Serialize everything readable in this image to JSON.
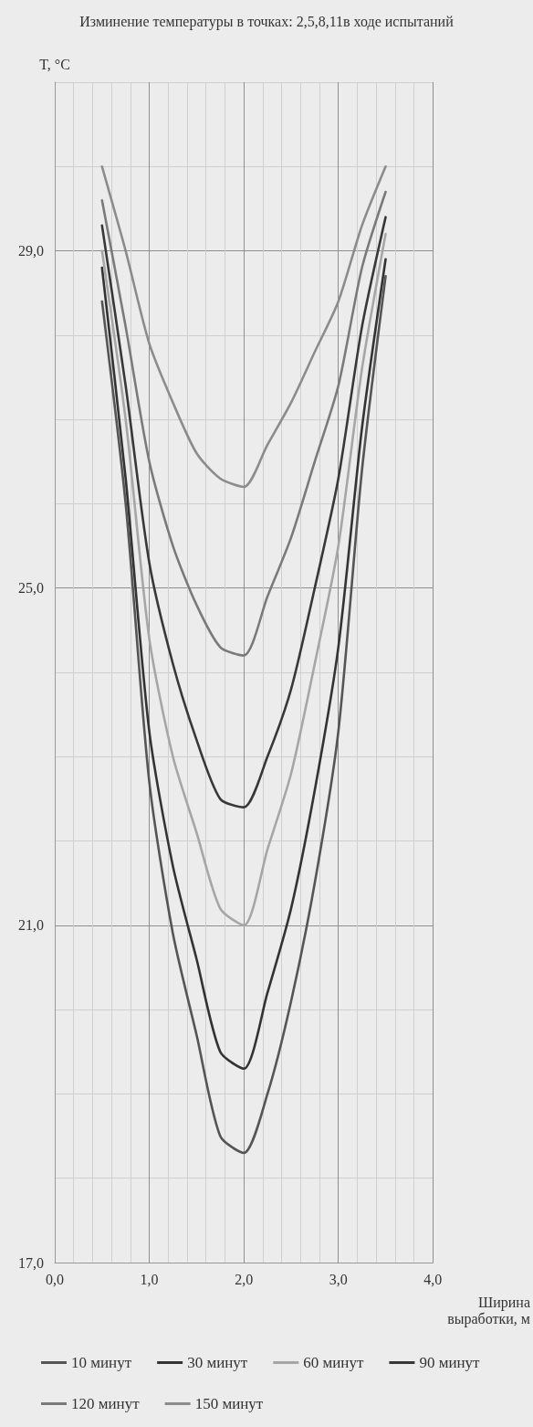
{
  "chart_data": {
    "type": "line",
    "title": "Изминение температуры в точках: 2,5,8,11в ходе испытаний",
    "xlabel": "Ширина\nвыработки, м",
    "ylabel": "T, °C",
    "x": [
      0.5,
      0.75,
      1,
      1.25,
      1.5,
      1.75,
      2,
      2.25,
      2.5,
      2.75,
      3,
      3.25,
      3.5
    ],
    "series": [
      {
        "name": "10 минут",
        "color": "#555555",
        "values": [
          28.4,
          26.0,
          22.7,
          20.9,
          19.7,
          18.5,
          18.3,
          19.0,
          20.1,
          21.5,
          23.3,
          26.4,
          28.7
        ]
      },
      {
        "name": "30 минут",
        "color": "#333333",
        "values": [
          28.8,
          26.3,
          23.3,
          21.7,
          20.6,
          19.5,
          19.3,
          20.2,
          21.2,
          22.6,
          24.3,
          26.9,
          28.9
        ]
      },
      {
        "name": "60 минут",
        "color": "#a6a6a6",
        "values": [
          29.0,
          27.0,
          24.4,
          23.0,
          22.1,
          21.2,
          21.0,
          21.9,
          22.8,
          24.1,
          25.5,
          27.6,
          29.2
        ]
      },
      {
        "name": "90 минут",
        "color": "#383838",
        "values": [
          29.3,
          27.4,
          25.3,
          24.1,
          23.2,
          22.5,
          22.4,
          23.0,
          23.8,
          25.0,
          26.3,
          28.1,
          29.4
        ]
      },
      {
        "name": "120 минут",
        "color": "#7a7a7a",
        "values": [
          29.6,
          28.1,
          26.5,
          25.5,
          24.8,
          24.3,
          24.2,
          24.9,
          25.6,
          26.5,
          27.4,
          28.8,
          29.7
        ]
      },
      {
        "name": "150 минут",
        "color": "#8c8c8c",
        "values": [
          30.0,
          29.0,
          27.9,
          27.2,
          26.6,
          26.3,
          26.2,
          26.7,
          27.2,
          27.8,
          28.4,
          29.3,
          30.0
        ]
      }
    ],
    "xlim": [
      0,
      4
    ],
    "xticks": [
      {
        "value": 0,
        "label": "0,0"
      },
      {
        "value": 1,
        "label": "1,0"
      },
      {
        "value": 2,
        "label": "2,0"
      },
      {
        "value": 3,
        "label": "3,0"
      },
      {
        "value": 4,
        "label": "4,0"
      }
    ],
    "ylim": [
      17,
      31
    ],
    "yticks": [
      {
        "value": 17,
        "label": "17,0"
      },
      {
        "value": 21,
        "label": "21,0"
      },
      {
        "value": 25,
        "label": "25,0"
      },
      {
        "value": 29,
        "label": "29,0"
      }
    ],
    "grid": true,
    "legend": "bottom",
    "marker": "none",
    "line_style": "solid"
  }
}
